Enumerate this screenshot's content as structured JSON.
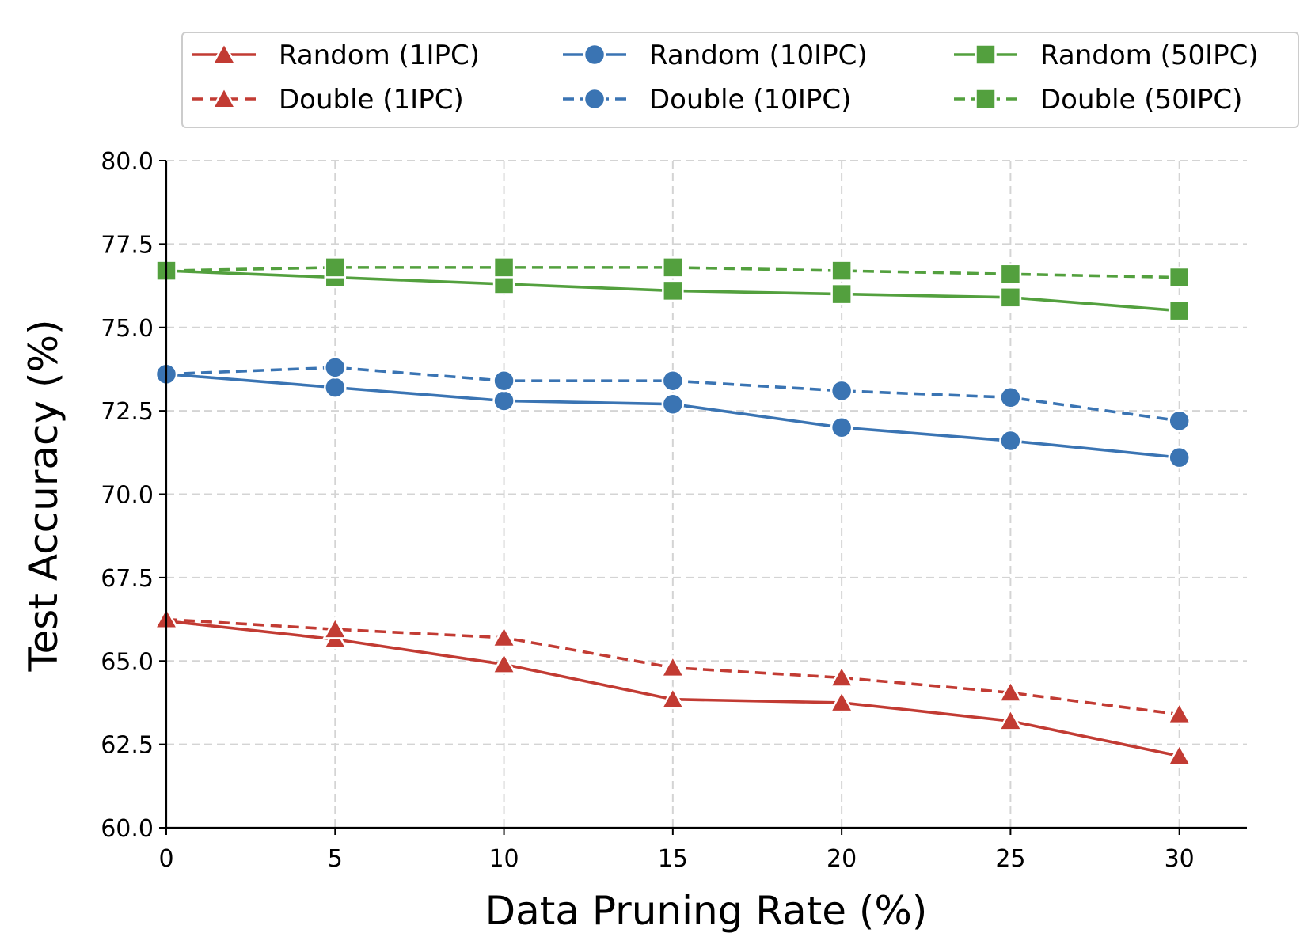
{
  "chart_data": {
    "type": "line",
    "title": "",
    "xlabel": "Data Pruning Rate (%)",
    "ylabel": "Test Accuracy (%)",
    "xlim": [
      0,
      32
    ],
    "ylim": [
      60.0,
      80.0
    ],
    "x_ticks": [
      "0",
      "5",
      "10",
      "15",
      "20",
      "25",
      "30"
    ],
    "y_ticks": [
      "60.0",
      "62.5",
      "65.0",
      "67.5",
      "70.0",
      "72.5",
      "75.0",
      "77.5",
      "80.0"
    ],
    "x": [
      0,
      5,
      10,
      15,
      20,
      25,
      30
    ],
    "grid": true,
    "legend_position": "top",
    "series": [
      {
        "name": "Random (1IPC)",
        "color": "#c23b33",
        "marker": "triangle",
        "dash": "solid",
        "values": [
          66.2,
          65.65,
          64.9,
          63.85,
          63.75,
          63.2,
          62.15
        ]
      },
      {
        "name": "Double (1IPC)",
        "color": "#c23b33",
        "marker": "triangle",
        "dash": "dashed",
        "values": [
          66.25,
          65.95,
          65.7,
          64.8,
          64.5,
          64.05,
          63.4
        ]
      },
      {
        "name": "Random (10IPC)",
        "color": "#3a74b3",
        "marker": "circle",
        "dash": "solid",
        "values": [
          73.6,
          73.2,
          72.8,
          72.7,
          72.0,
          71.6,
          71.1
        ]
      },
      {
        "name": "Double (10IPC)",
        "color": "#3a74b3",
        "marker": "circle",
        "dash": "dashed",
        "values": [
          73.6,
          73.8,
          73.4,
          73.4,
          73.1,
          72.9,
          72.2
        ]
      },
      {
        "name": "Random (50IPC)",
        "color": "#53a03e",
        "marker": "square",
        "dash": "solid",
        "values": [
          76.7,
          76.5,
          76.3,
          76.1,
          76.0,
          75.9,
          75.5
        ]
      },
      {
        "name": "Double (50IPC)",
        "color": "#53a03e",
        "marker": "square",
        "dash": "dashed",
        "values": [
          76.7,
          76.8,
          76.8,
          76.8,
          76.7,
          76.6,
          76.5
        ]
      }
    ]
  }
}
